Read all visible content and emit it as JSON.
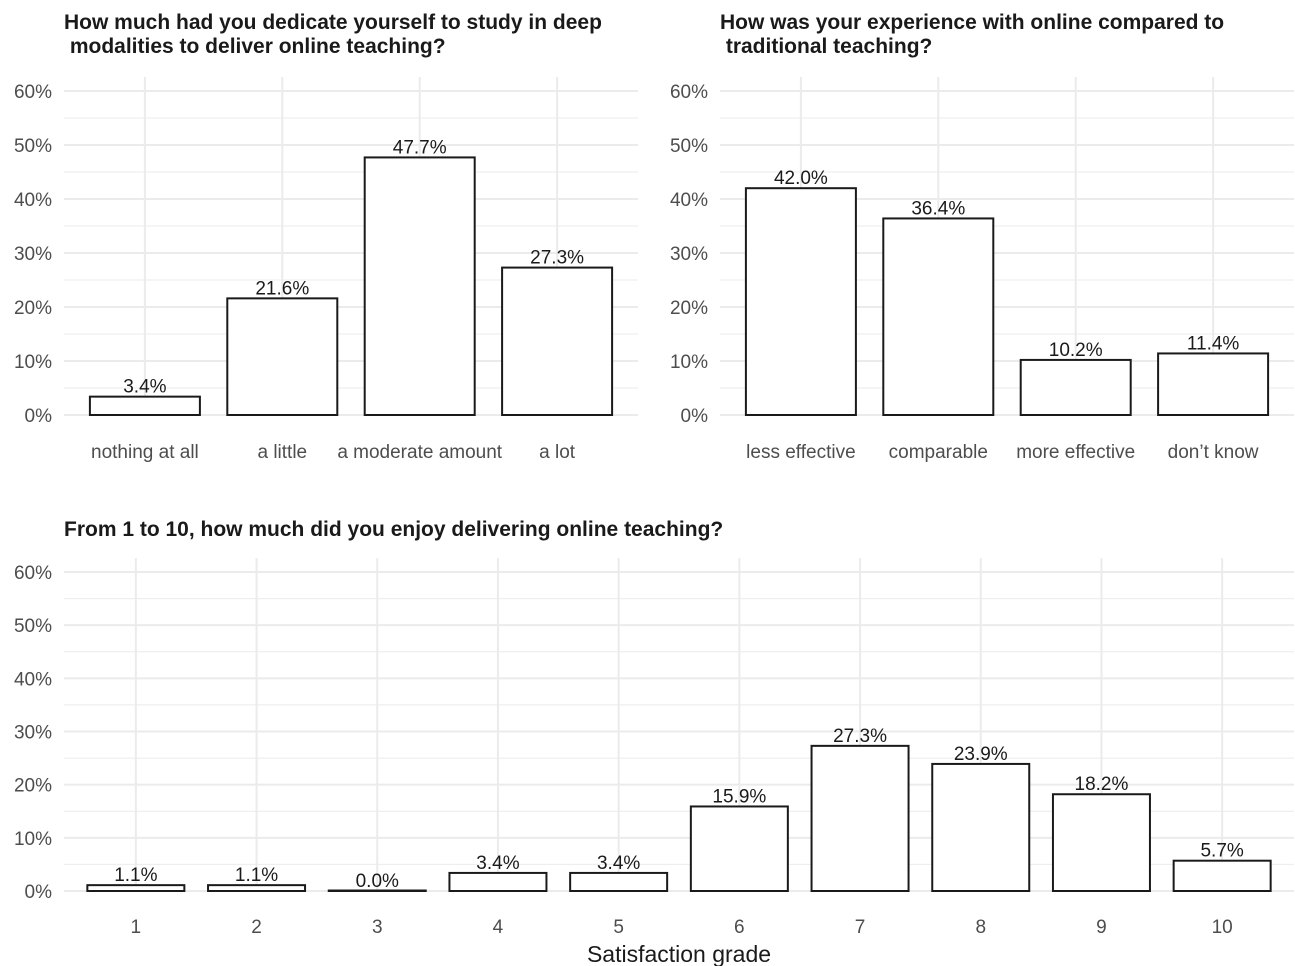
{
  "chart_data": [
    {
      "type": "bar",
      "title": "How much had you dedicate yourself to study in deep\n modalities to deliver online teaching?",
      "categories": [
        "nothing at all",
        "a little",
        "a moderate amount",
        "a lot"
      ],
      "values": [
        3.4,
        21.6,
        47.7,
        27.3
      ],
      "value_labels": [
        "3.4%",
        "21.6%",
        "47.7%",
        "27.3%"
      ],
      "xlabel": "",
      "ylabel": "",
      "ylim": [
        0,
        60
      ],
      "yticks": [
        "0%",
        "10%",
        "20%",
        "30%",
        "40%",
        "50%",
        "60%"
      ],
      "grid": true
    },
    {
      "type": "bar",
      "title": "How was your experience with online compared to\n traditional teaching?",
      "categories": [
        "less effective",
        "comparable",
        "more effective",
        "don’t know"
      ],
      "values": [
        42.0,
        36.4,
        10.2,
        11.4
      ],
      "value_labels": [
        "42.0%",
        "36.4%",
        "10.2%",
        "11.4%"
      ],
      "xlabel": "",
      "ylabel": "",
      "ylim": [
        0,
        60
      ],
      "yticks": [
        "0%",
        "10%",
        "20%",
        "30%",
        "40%",
        "50%",
        "60%"
      ],
      "grid": true
    },
    {
      "type": "bar",
      "title": "From 1 to 10, how much did you enjoy delivering online teaching?",
      "categories": [
        "1",
        "2",
        "3",
        "4",
        "5",
        "6",
        "7",
        "8",
        "9",
        "10"
      ],
      "values": [
        1.1,
        1.1,
        0.0,
        3.4,
        3.4,
        15.9,
        27.3,
        23.9,
        18.2,
        5.7
      ],
      "value_labels": [
        "1.1%",
        "1.1%",
        "0.0%",
        "3.4%",
        "3.4%",
        "15.9%",
        "27.3%",
        "23.9%",
        "18.2%",
        "5.7%"
      ],
      "xlabel": "Satisfaction grade",
      "ylabel": "",
      "ylim": [
        0,
        60
      ],
      "yticks": [
        "0%",
        "10%",
        "20%",
        "30%",
        "40%",
        "50%",
        "60%"
      ],
      "grid": true
    }
  ],
  "colors": {
    "bar_fill": "#ffffff",
    "bar_stroke": "#1a1a1a",
    "grid": "#ebebeb",
    "tick_text": "#4d4d4d",
    "title_text": "#1a1a1a"
  }
}
